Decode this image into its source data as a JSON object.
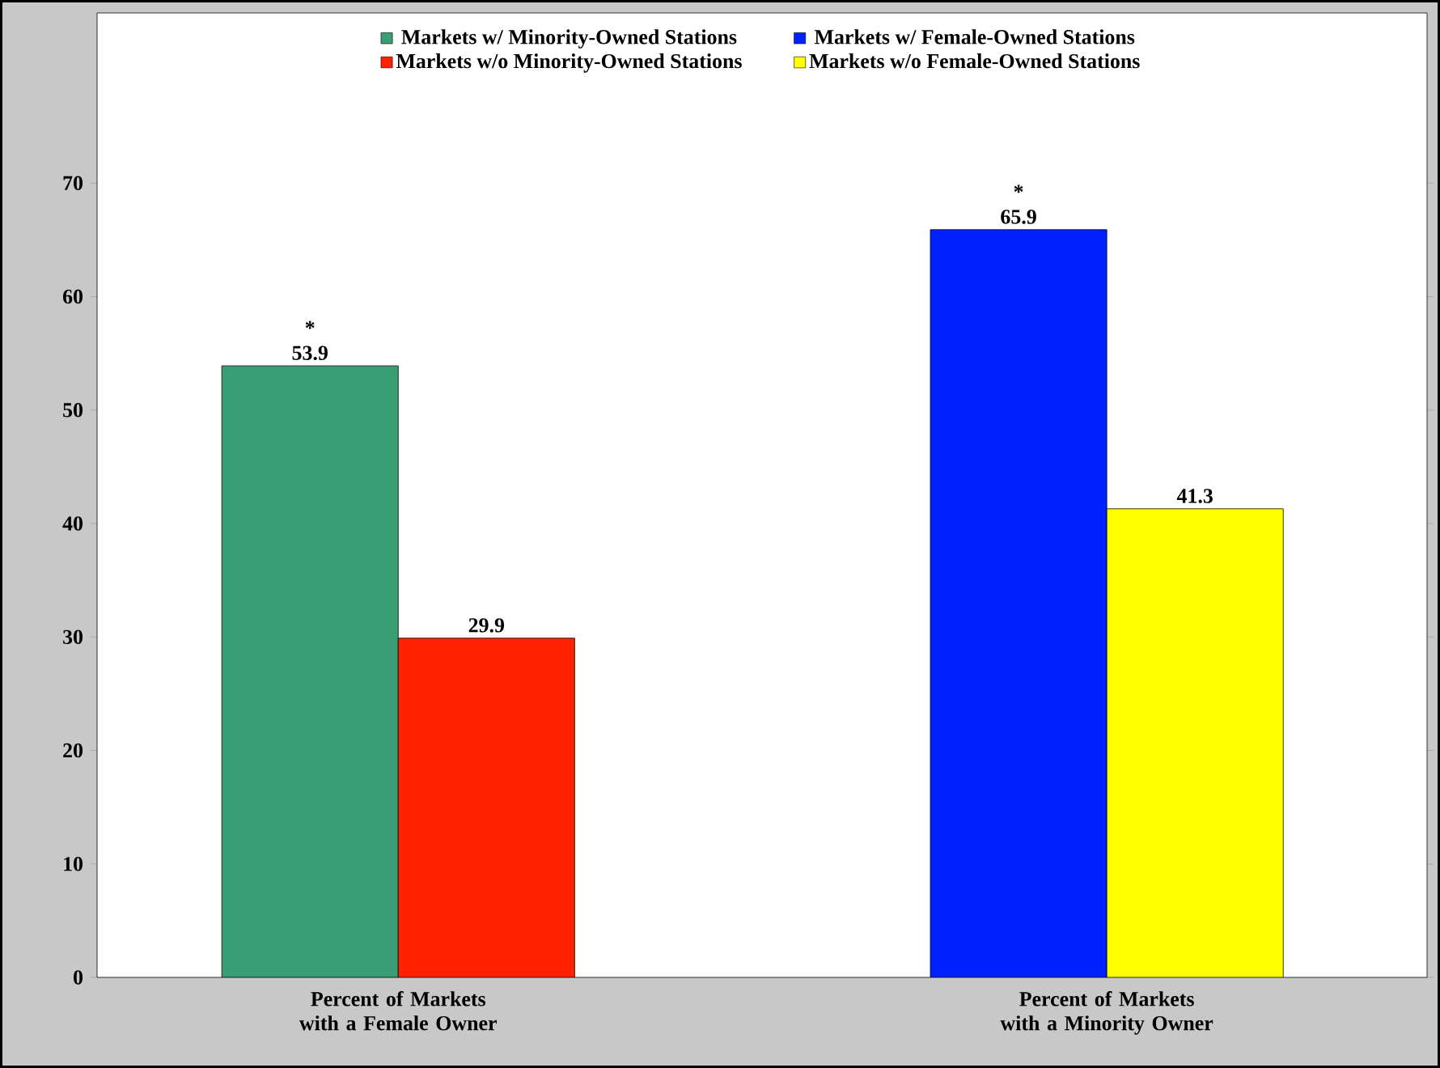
{
  "chart_data": {
    "type": "bar",
    "categories": [
      "Percent of Markets with a Female Owner",
      "Percent of Markets with a Minority Owner"
    ],
    "series": [
      {
        "name": "Markets w/ Minority-Owned Stations",
        "color": "#3a9e74",
        "values": [
          53.9,
          null
        ]
      },
      {
        "name": "Markets w/o Minority-Owned Stations",
        "color": "#ff2200",
        "values": [
          29.9,
          null
        ]
      },
      {
        "name": "Markets w/ Female-Owned Stations",
        "color": "#0022ff",
        "values": [
          null,
          65.9
        ]
      },
      {
        "name": "Markets w/o Female-Owned Stations",
        "color": "#ffff00",
        "values": [
          null,
          41.3
        ]
      }
    ],
    "ylim": [
      0,
      85
    ],
    "yticks": [
      0,
      10,
      20,
      30,
      40,
      50,
      60,
      70
    ],
    "data_labels": true,
    "grid": false,
    "legend": "top",
    "annotations": [
      "*",
      "*"
    ]
  }
}
